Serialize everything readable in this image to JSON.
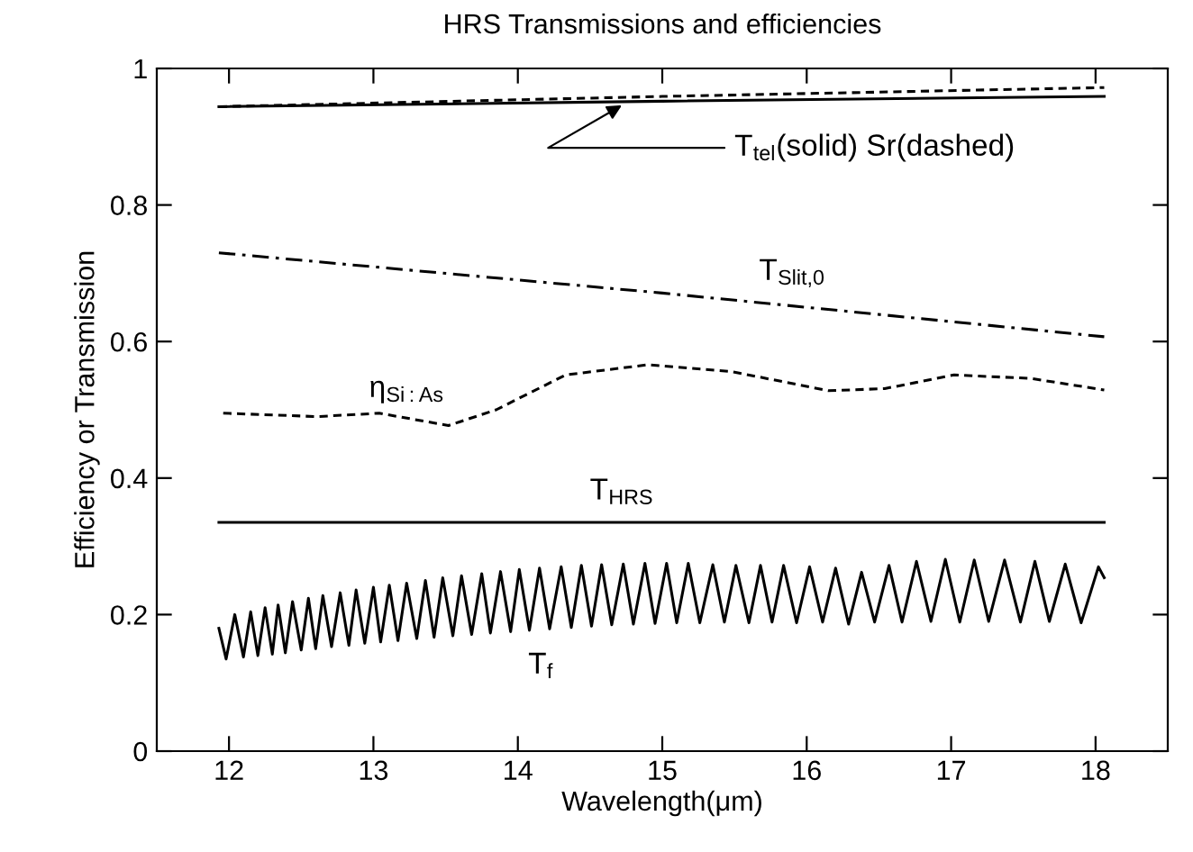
{
  "chart_data": {
    "type": "line",
    "title": "HRS Transmissions and efficiencies",
    "xlabel": "Wavelength(μm)",
    "ylabel": "Efficiency or Transmission",
    "xlim": [
      11.5,
      18.5
    ],
    "ylim": [
      0,
      1
    ],
    "xticks": [
      12,
      13,
      14,
      15,
      16,
      17,
      18
    ],
    "yticks": [
      0,
      {
        "value": 0.2,
        "label": "0.2"
      },
      {
        "value": 0.4,
        "label": "0.4"
      },
      {
        "value": 0.6,
        "label": "0.6"
      },
      {
        "value": 0.8,
        "label": "0.8"
      },
      1
    ],
    "grid": false,
    "legend": false,
    "marker": "none",
    "series": [
      {
        "color": "#000000",
        "line_style": "solid",
        "x": [
          11.93,
          15.0,
          18.06
        ],
        "values": [
          0.944,
          0.952,
          0.959
        ]
      },
      {
        "color": "#000000",
        "line_style": "dashed",
        "x": [
          11.93,
          15.0,
          18.06
        ],
        "values": [
          0.944,
          0.959,
          0.972
        ]
      },
      {
        "name": "T$_{Slit,0}$",
        "color": "#000000",
        "line_style": "dashdot",
        "x": [
          11.93,
          15.0,
          18.06
        ],
        "values": [
          0.73,
          0.671,
          0.607
        ]
      },
      {
        "name": "η$_{Si:As}$",
        "color": "#000000",
        "line_style": "dashed",
        "x": [
          11.96,
          12.61,
          13.04,
          13.52,
          13.85,
          14.33,
          14.9,
          15.48,
          16.15,
          16.54,
          17.02,
          17.55,
          18.06
        ],
        "values": [
          0.495,
          0.49,
          0.495,
          0.477,
          0.5,
          0.551,
          0.566,
          0.556,
          0.528,
          0.531,
          0.551,
          0.546,
          0.529
        ]
      },
      {
        "name": "T$_{HRS}$",
        "color": "#000000",
        "line_style": "solid",
        "x": [
          11.93,
          18.06
        ],
        "values": [
          0.335,
          0.335
        ]
      },
      {
        "name": "T$_{f}$",
        "color": "#000000",
        "line_style": "solid",
        "x": [
          11.93,
          11.98,
          12.04,
          12.1,
          12.15,
          12.2,
          12.25,
          12.3,
          12.34,
          12.39,
          12.44,
          12.5,
          12.55,
          12.6,
          12.65,
          12.71,
          12.77,
          12.83,
          12.88,
          12.94,
          13.0,
          13.05,
          13.11,
          13.17,
          13.23,
          13.3,
          13.36,
          13.42,
          13.48,
          13.55,
          13.61,
          13.68,
          13.75,
          13.81,
          13.88,
          13.95,
          14.01,
          14.08,
          14.15,
          14.22,
          14.3,
          14.37,
          14.44,
          14.51,
          14.58,
          14.65,
          14.73,
          14.8,
          14.88,
          14.95,
          15.03,
          15.1,
          15.18,
          15.26,
          15.35,
          15.43,
          15.51,
          15.6,
          15.68,
          15.76,
          15.84,
          15.93,
          16.02,
          16.11,
          16.2,
          16.29,
          16.38,
          16.47,
          16.57,
          16.66,
          16.76,
          16.86,
          16.96,
          17.06,
          17.16,
          17.26,
          17.37,
          17.48,
          17.58,
          17.68,
          17.79,
          17.9,
          18.02,
          18.06
        ],
        "values": [
          0.18,
          0.135,
          0.2,
          0.138,
          0.204,
          0.14,
          0.21,
          0.142,
          0.214,
          0.144,
          0.219,
          0.148,
          0.224,
          0.15,
          0.228,
          0.153,
          0.232,
          0.155,
          0.236,
          0.158,
          0.24,
          0.16,
          0.243,
          0.162,
          0.246,
          0.165,
          0.25,
          0.167,
          0.254,
          0.169,
          0.257,
          0.171,
          0.26,
          0.173,
          0.263,
          0.175,
          0.266,
          0.177,
          0.268,
          0.179,
          0.27,
          0.181,
          0.272,
          0.183,
          0.273,
          0.185,
          0.274,
          0.186,
          0.275,
          0.187,
          0.275,
          0.188,
          0.275,
          0.188,
          0.273,
          0.189,
          0.272,
          0.188,
          0.272,
          0.189,
          0.272,
          0.188,
          0.27,
          0.189,
          0.268,
          0.186,
          0.262,
          0.189,
          0.272,
          0.189,
          0.278,
          0.19,
          0.281,
          0.189,
          0.28,
          0.19,
          0.28,
          0.189,
          0.278,
          0.19,
          0.274,
          0.188,
          0.27,
          0.254
        ]
      }
    ],
    "annotations": [
      {
        "text": "T$_{tel}$(solid) Sr(dashed)",
        "x": 14.72,
        "y": 0.946
      }
    ]
  }
}
